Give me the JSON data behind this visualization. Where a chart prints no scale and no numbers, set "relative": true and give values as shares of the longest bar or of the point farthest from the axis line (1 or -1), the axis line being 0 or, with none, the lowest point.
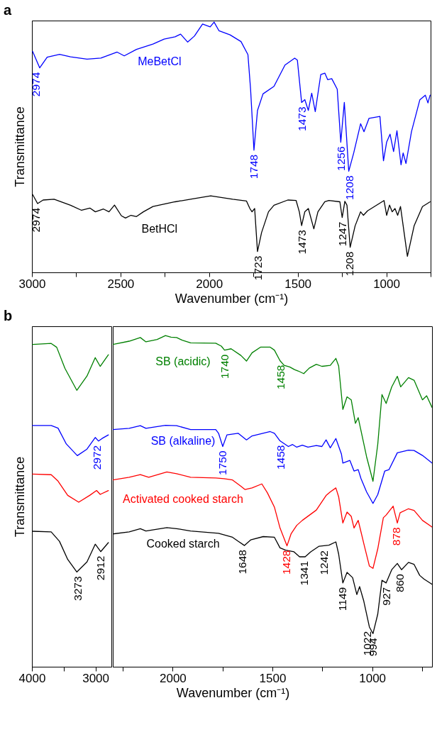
{
  "chart_data": [
    {
      "type": "line",
      "title": "a",
      "xlabel": "Wavenumber (cm⁻¹)",
      "ylabel": "Transmittance",
      "relative": true,
      "xlim": [
        3000,
        750
      ],
      "xticks": [
        3000,
        {
          "value": 2750,
          "label": null
        },
        2500,
        {
          "value": 2250,
          "label": null
        },
        2000,
        {
          "value": 1750,
          "label": null
        },
        1500,
        {
          "value": 1250,
          "label": null
        },
        1000,
        {
          "value": 750,
          "label": null
        }
      ],
      "series": [
        {
          "name": "MeBetCl",
          "color": "#0000ff",
          "x": [
            2996,
            2956,
            2914,
            2844,
            2782,
            2689,
            2611,
            2519,
            2479,
            2410,
            2317,
            2254,
            2192,
            2161,
            2121,
            2083,
            2037,
            1994,
            1972,
            1944,
            1882,
            1820,
            1781,
            1766,
            1747,
            1727,
            1696,
            1634,
            1572,
            1517,
            1502,
            1478,
            1460,
            1440,
            1421,
            1401,
            1370,
            1347,
            1331,
            1308,
            1277,
            1257,
            1237,
            1212,
            1184,
            1145,
            1126,
            1098,
            1036,
            1016,
            998,
            979,
            959,
            940,
            917,
            905,
            889,
            858,
            811,
            780,
            765,
            753
          ],
          "values": [
            0.883,
            0.817,
            0.86,
            0.871,
            0.861,
            0.852,
            0.856,
            0.88,
            0.865,
            0.891,
            0.912,
            0.932,
            0.941,
            0.952,
            0.92,
            0.944,
            0.992,
            0.981,
            1.0,
            0.965,
            0.949,
            0.922,
            0.87,
            0.732,
            0.488,
            0.647,
            0.713,
            0.743,
            0.828,
            0.856,
            0.848,
            0.679,
            0.69,
            0.647,
            0.716,
            0.642,
            0.79,
            0.796,
            0.77,
            0.774,
            0.732,
            0.52,
            0.679,
            0.404,
            0.477,
            0.594,
            0.562,
            0.615,
            0.623,
            0.446,
            0.521,
            0.552,
            0.483,
            0.566,
            0.43,
            0.477,
            0.435,
            0.562,
            0.689,
            0.708,
            0.677,
            0.708
          ]
        },
        {
          "name": "BetHCl",
          "color": "#000000",
          "x": [
            2996,
            2968,
            2937,
            2875,
            2782,
            2720,
            2673,
            2642,
            2596,
            2565,
            2534,
            2495,
            2472,
            2441,
            2410,
            2371,
            2317,
            2192,
            2099,
            1991,
            1867,
            1789,
            1770,
            1758,
            1743,
            1727,
            1704,
            1665,
            1634,
            1556,
            1509,
            1491,
            1478,
            1460,
            1440,
            1409,
            1386,
            1347,
            1324,
            1262,
            1249,
            1234,
            1222,
            1204,
            1176,
            1145,
            1129,
            1106,
            1013,
            998,
            982,
            967,
            951,
            936,
            920,
            881,
            843,
            796,
            753
          ],
          "values": [
            0.311,
            0.275,
            0.289,
            0.292,
            0.268,
            0.248,
            0.257,
            0.242,
            0.253,
            0.242,
            0.269,
            0.226,
            0.217,
            0.228,
            0.223,
            0.242,
            0.263,
            0.282,
            0.293,
            0.306,
            0.292,
            0.285,
            0.255,
            0.242,
            0.255,
            0.083,
            0.159,
            0.242,
            0.268,
            0.289,
            0.287,
            0.242,
            0.187,
            0.242,
            0.255,
            0.174,
            0.242,
            0.282,
            0.287,
            0.282,
            0.219,
            0.284,
            0.268,
            0.1,
            0.186,
            0.242,
            0.228,
            0.246,
            0.287,
            0.228,
            0.269,
            0.242,
            0.255,
            0.228,
            0.263,
            0.064,
            0.186,
            0.263,
            0.282
          ]
        }
      ],
      "annotations": [
        {
          "text": "2974",
          "x": 2974,
          "y": 0.817
        },
        {
          "text": "1748",
          "x": 1748,
          "y": 0.488
        },
        {
          "text": "1473",
          "x": 1473,
          "y": 0.679
        },
        {
          "text": "1256",
          "x": 1256,
          "y": 0.52
        },
        {
          "text": "1208",
          "x": 1208,
          "y": 0.404
        },
        {
          "text": "2974",
          "x": 2974,
          "y": 0.275
        },
        {
          "text": "1723",
          "x": 1723,
          "y": 0.083
        },
        {
          "text": "1473",
          "x": 1473,
          "y": 0.187
        },
        {
          "text": "1247",
          "x": 1247,
          "y": 0.219
        },
        {
          "text": "1208",
          "x": 1208,
          "y": 0.1
        }
      ]
    },
    {
      "type": "line",
      "title": "b",
      "ylabel": "Transmittance",
      "relative": true,
      "xlim": [
        4000,
        2750
      ],
      "xticks": [
        4000,
        {
          "value": 3500,
          "label": null
        },
        3000
      ],
      "series": [
        {
          "color": "#008000",
          "x": [
            3991,
            3697,
            3610,
            3481,
            3294,
            3134,
            3004,
            2926,
            2797
          ],
          "values": [
            0.997,
            1.0,
            0.988,
            0.923,
            0.855,
            0.899,
            0.956,
            0.929,
            0.965
          ]
        },
        {
          "color": "#0000ff",
          "x": [
            3991,
            3697,
            3589,
            3459,
            3286,
            3134,
            3004,
            2952,
            2896,
            2797
          ],
          "values": [
            0.746,
            0.746,
            0.738,
            0.689,
            0.653,
            0.673,
            0.709,
            0.698,
            0.706,
            0.717
          ]
        },
        {
          "color": "#ff0000",
          "x": [
            3991,
            3697,
            3589,
            3437,
            3264,
            3091,
            2983,
            2926,
            2797
          ],
          "values": [
            0.596,
            0.594,
            0.574,
            0.53,
            0.509,
            0.53,
            0.545,
            0.533,
            0.545
          ]
        },
        {
          "color": "#000000",
          "x": [
            3991,
            3697,
            3567,
            3437,
            3294,
            3134,
            3004,
            2918,
            2797
          ],
          "values": [
            0.419,
            0.417,
            0.388,
            0.332,
            0.293,
            0.324,
            0.379,
            0.356,
            0.384
          ]
        }
      ],
      "annotations": [
        {
          "text": "2972",
          "x": 2972,
          "y": 0.698
        },
        {
          "text": "3273",
          "x": 3273,
          "y": 0.293
        },
        {
          "text": "2912",
          "x": 2912,
          "y": 0.356
        }
      ]
    },
    {
      "type": "line",
      "xlabel": "Wavenumber (cm⁻¹)",
      "relative": true,
      "xlim": [
        2300,
        700
      ],
      "xticks": [
        {
          "value": 2250,
          "label": null
        },
        2000,
        {
          "value": 1750,
          "label": null
        },
        1500,
        {
          "value": 1250,
          "label": null
        },
        1000,
        {
          "value": 750,
          "label": null
        }
      ],
      "series": [
        {
          "name": "SB (acidic)",
          "color": "#008000",
          "x": [
            2300,
            2218,
            2162,
            2134,
            2078,
            2036,
            2008,
            1980,
            1952,
            1910,
            1784,
            1756,
            1740,
            1707,
            1658,
            1630,
            1602,
            1560,
            1511,
            1490,
            1462,
            1441,
            1413,
            1389,
            1371,
            1343,
            1315,
            1280,
            1252,
            1210,
            1182,
            1168,
            1147,
            1126,
            1105,
            1084,
            1070,
            1028,
            996,
            972,
            951,
            930,
            902,
            874,
            857,
            818,
            790,
            748,
            727,
            700
          ],
          "values": [
            0.973,
            0.983,
            0.994,
            0.981,
            0.988,
            1.0,
            0.995,
            0.994,
            0.986,
            0.978,
            0.977,
            0.968,
            0.956,
            0.96,
            0.94,
            0.923,
            0.948,
            0.965,
            0.965,
            0.956,
            0.924,
            0.91,
            0.905,
            0.897,
            0.893,
            0.885,
            0.902,
            0.913,
            0.907,
            0.91,
            0.931,
            0.908,
            0.777,
            0.815,
            0.806,
            0.735,
            0.752,
            0.634,
            0.56,
            0.672,
            0.822,
            0.795,
            0.845,
            0.877,
            0.845,
            0.873,
            0.865,
            0.806,
            0.818,
            0.783
          ]
        },
        {
          "name": "SB (alkaline)",
          "color": "#0000ff",
          "x": [
            2300,
            2218,
            2162,
            2134,
            2036,
            1980,
            1910,
            1784,
            1770,
            1749,
            1728,
            1672,
            1630,
            1602,
            1511,
            1490,
            1462,
            1420,
            1399,
            1378,
            1350,
            1322,
            1280,
            1252,
            1231,
            1210,
            1182,
            1154,
            1147,
            1112,
            1091,
            1070,
            1056,
            1028,
            996,
            972,
            937,
            916,
            874,
            818,
            790,
            748,
            700
          ],
          "values": [
            0.716,
            0.72,
            0.728,
            0.72,
            0.729,
            0.728,
            0.716,
            0.716,
            0.705,
            0.665,
            0.7,
            0.705,
            0.685,
            0.697,
            0.71,
            0.705,
            0.682,
            0.665,
            0.671,
            0.663,
            0.669,
            0.663,
            0.668,
            0.665,
            0.685,
            0.661,
            0.689,
            0.642,
            0.615,
            0.623,
            0.591,
            0.595,
            0.568,
            0.528,
            0.493,
            0.52,
            0.591,
            0.595,
            0.646,
            0.654,
            0.653,
            0.638,
            0.615
          ]
        },
        {
          "name": "Activated cooked starch",
          "color": "#ff0000",
          "x": [
            2300,
            2218,
            2162,
            2120,
            2029,
            1980,
            1910,
            1784,
            1742,
            1700,
            1658,
            1637,
            1602,
            1553,
            1525,
            1490,
            1462,
            1427,
            1406,
            1378,
            1350,
            1280,
            1231,
            1210,
            1182,
            1168,
            1147,
            1126,
            1105,
            1091,
            1070,
            1042,
            1014,
            996,
            972,
            944,
            930,
            895,
            874,
            860,
            818,
            790,
            748,
            700
          ],
          "values": [
            0.564,
            0.572,
            0.58,
            0.572,
            0.588,
            0.583,
            0.572,
            0.57,
            0.568,
            0.564,
            0.545,
            0.535,
            0.54,
            0.552,
            0.525,
            0.482,
            0.419,
            0.365,
            0.402,
            0.427,
            0.442,
            0.473,
            0.517,
            0.528,
            0.54,
            0.513,
            0.434,
            0.467,
            0.454,
            0.419,
            0.442,
            0.372,
            0.304,
            0.297,
            0.356,
            0.45,
            0.458,
            0.485,
            0.434,
            0.465,
            0.477,
            0.472,
            0.442,
            0.422
          ]
        },
        {
          "name": "Cooked starch",
          "color": "#000000",
          "x": [
            2300,
            2218,
            2162,
            2134,
            2029,
            1980,
            1910,
            1770,
            1700,
            1672,
            1640,
            1609,
            1546,
            1490,
            1462,
            1434,
            1392,
            1364,
            1336,
            1308,
            1266,
            1217,
            1182,
            1168,
            1147,
            1126,
            1098,
            1077,
            1063,
            1042,
            1014,
            996,
            972,
            951,
            930,
            902,
            874,
            853,
            818,
            790,
            762,
            741,
            700
          ],
          "values": [
            0.401,
            0.407,
            0.417,
            0.41,
            0.42,
            0.417,
            0.41,
            0.403,
            0.391,
            0.379,
            0.366,
            0.383,
            0.393,
            0.391,
            0.359,
            0.352,
            0.347,
            0.332,
            0.332,
            0.347,
            0.364,
            0.367,
            0.377,
            0.34,
            0.253,
            0.285,
            0.269,
            0.218,
            0.242,
            0.198,
            0.12,
            0.1,
            0.159,
            0.261,
            0.253,
            0.293,
            0.312,
            0.293,
            0.315,
            0.309,
            0.276,
            0.265,
            0.249
          ]
        }
      ],
      "annotations": [
        {
          "text": "1740",
          "x": 1740,
          "y": 0.956
        },
        {
          "text": "1458",
          "x": 1458,
          "y": 0.924
        },
        {
          "text": "1750",
          "x": 1750,
          "y": 0.665
        },
        {
          "text": "1458",
          "x": 1458,
          "y": 0.682
        },
        {
          "text": "1428",
          "x": 1428,
          "y": 0.365
        },
        {
          "text": "878",
          "x": 878,
          "y": 0.434
        },
        {
          "text": "1648",
          "x": 1648,
          "y": 0.366
        },
        {
          "text": "1341",
          "x": 1341,
          "y": 0.332
        },
        {
          "text": "1242",
          "x": 1242,
          "y": 0.364
        },
        {
          "text": "1149",
          "x": 1149,
          "y": 0.253
        },
        {
          "text": "1022",
          "x": 1022,
          "y": 0.12
        },
        {
          "text": "994",
          "x": 994,
          "y": 0.1
        },
        {
          "text": "927",
          "x": 927,
          "y": 0.253
        },
        {
          "text": "860",
          "x": 860,
          "y": 0.293
        }
      ]
    }
  ]
}
